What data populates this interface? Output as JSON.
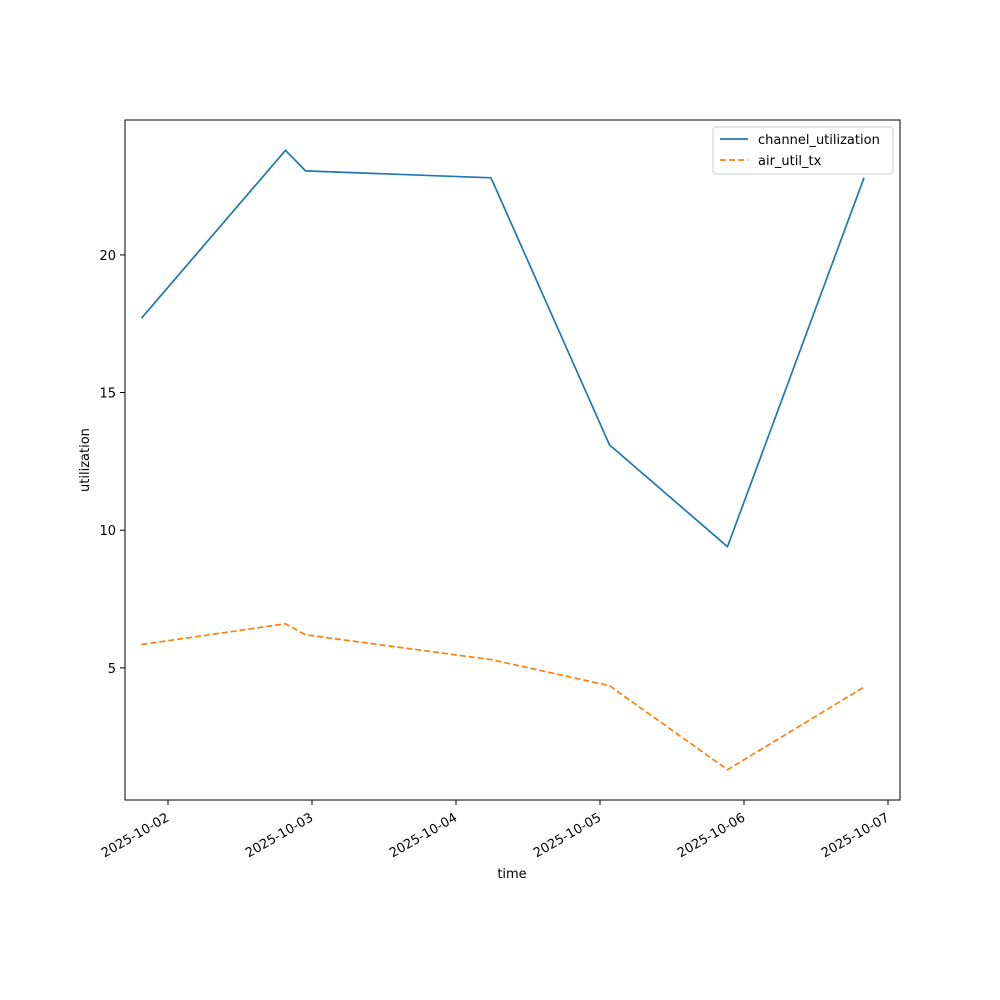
{
  "chart_data": {
    "type": "line",
    "title": "",
    "xlabel": "time",
    "ylabel": "utilization",
    "x_tick_labels": [
      "2025-10-02",
      "2025-10-03",
      "2025-10-04",
      "2025-10-05",
      "2025-10-06",
      "2025-10-07"
    ],
    "y_ticks": [
      5,
      10,
      15,
      20
    ],
    "ylim": [
      0.2,
      24.9
    ],
    "xlim": [
      "2025-10-01T16:50",
      "2025-10-07T02:00"
    ],
    "grid": false,
    "legend": "top-right",
    "x": [
      "2025-10-01T19:35",
      "2025-10-02T19:35",
      "2025-10-02T22:55",
      "2025-10-04T05:50",
      "2025-10-05T01:35",
      "2025-10-05T21:15",
      "2025-10-06T20:00"
    ],
    "series": [
      {
        "name": "channel_utilization",
        "values": [
          17.7,
          23.8,
          23.05,
          22.8,
          13.1,
          9.4,
          22.8
        ],
        "color": "#1f77b4",
        "style": "solid"
      },
      {
        "name": "air_util_tx",
        "values": [
          5.85,
          6.6,
          6.2,
          5.3,
          4.35,
          1.3,
          4.3
        ],
        "color": "#ff7f0e",
        "style": "dashed"
      }
    ]
  }
}
